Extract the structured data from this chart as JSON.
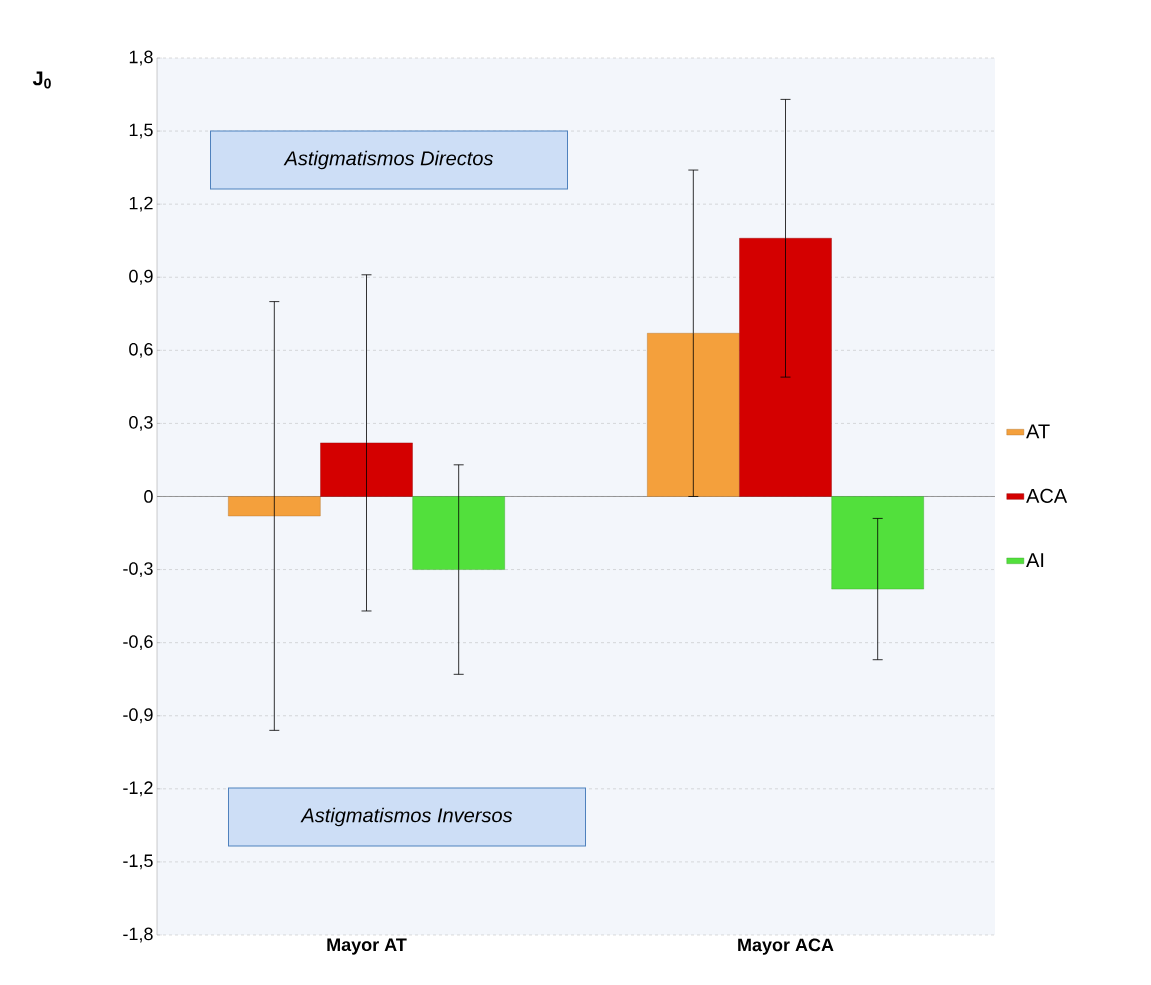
{
  "chart_data": {
    "type": "bar",
    "ylabel": "J$_{0}$",
    "categories": [
      "Mayor AT",
      "Mayor ACA"
    ],
    "series": [
      {
        "name": "AT",
        "color": "#f4a03c",
        "values": [
          -0.08,
          0.67
        ],
        "errors": [
          0.88,
          0.67
        ]
      },
      {
        "name": "ACA",
        "color": "#d40000",
        "values": [
          0.22,
          1.06
        ],
        "errors": [
          0.69,
          0.57
        ]
      },
      {
        "name": "AI",
        "color": "#52e03c",
        "values": [
          -0.3,
          -0.38
        ],
        "errors": [
          0.43,
          0.29
        ]
      }
    ],
    "ylim": [
      -1.8,
      1.8
    ],
    "yticks": [
      {
        "value": -1.8,
        "label": "-1,8"
      },
      {
        "value": -1.5,
        "label": "-1,5"
      },
      {
        "value": -1.2,
        "label": "-1,2"
      },
      {
        "value": -0.9,
        "label": "-0,9"
      },
      {
        "value": -0.6,
        "label": "-0,6"
      },
      {
        "value": -0.3,
        "label": "-0,3"
      },
      0,
      {
        "value": 0.3,
        "label": "0,3"
      },
      {
        "value": 0.6,
        "label": "0,6"
      },
      {
        "value": 0.9,
        "label": "0,9"
      },
      {
        "value": 1.2,
        "label": "1,2"
      },
      {
        "value": 1.5,
        "label": "1,5"
      },
      {
        "value": 1.8,
        "label": "1,8"
      }
    ],
    "grid": "y",
    "legend": "right",
    "annotations": [
      "Astigmatismos Directos",
      "Astigmatismos Inversos"
    ]
  }
}
